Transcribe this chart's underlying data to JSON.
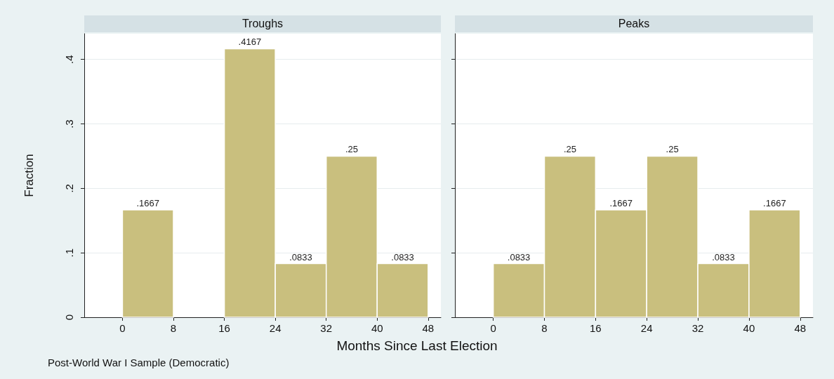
{
  "chart_data": [
    {
      "type": "histogram",
      "title": "Troughs",
      "ylabel": "Fraction",
      "xlabel": "Months Since Last Election",
      "annotations": [
        "Post-World War I Sample (Democratic)"
      ],
      "bins": [
        0,
        8,
        16,
        24,
        32,
        40,
        48
      ],
      "values": [
        0.1667,
        0,
        0.4167,
        0.0833,
        0.25,
        0.0833
      ],
      "value_labels": [
        ".1667",
        null,
        ".4167",
        ".0833",
        ".25",
        ".0833"
      ],
      "color": "#c9bf7e",
      "xlim": [
        -6,
        50
      ],
      "xticks": [
        0,
        8,
        16,
        24,
        32,
        40,
        48
      ],
      "ylim": [
        0,
        0.44
      ],
      "yticks": [
        0,
        {
          "value": 0.1,
          "label": ".1"
        },
        {
          "value": 0.2,
          "label": ".2"
        },
        {
          "value": 0.3,
          "label": ".3"
        },
        {
          "value": 0.4,
          "label": ".4"
        }
      ],
      "grid": "y"
    },
    {
      "type": "histogram",
      "title": "Peaks",
      "bins": [
        0,
        8,
        16,
        24,
        32,
        40,
        48
      ],
      "values": [
        0.0833,
        0.25,
        0.1667,
        0.25,
        0.0833,
        0.1667
      ],
      "value_labels": [
        ".0833",
        ".25",
        ".1667",
        ".25",
        ".0833",
        ".1667"
      ],
      "color": "#c9bf7e",
      "xlim": [
        -6,
        50
      ],
      "xticks": [
        0,
        8,
        16,
        24,
        32,
        40,
        48
      ],
      "ylim": [
        0,
        0.44
      ],
      "yticks": [
        {
          "value": 0,
          "label": null
        },
        {
          "value": 0.1,
          "label": null
        },
        {
          "value": 0.2,
          "label": null
        },
        {
          "value": 0.3,
          "label": null
        },
        {
          "value": 0.4,
          "label": null
        }
      ],
      "grid": "y",
      "tick_labels": "x"
    }
  ]
}
